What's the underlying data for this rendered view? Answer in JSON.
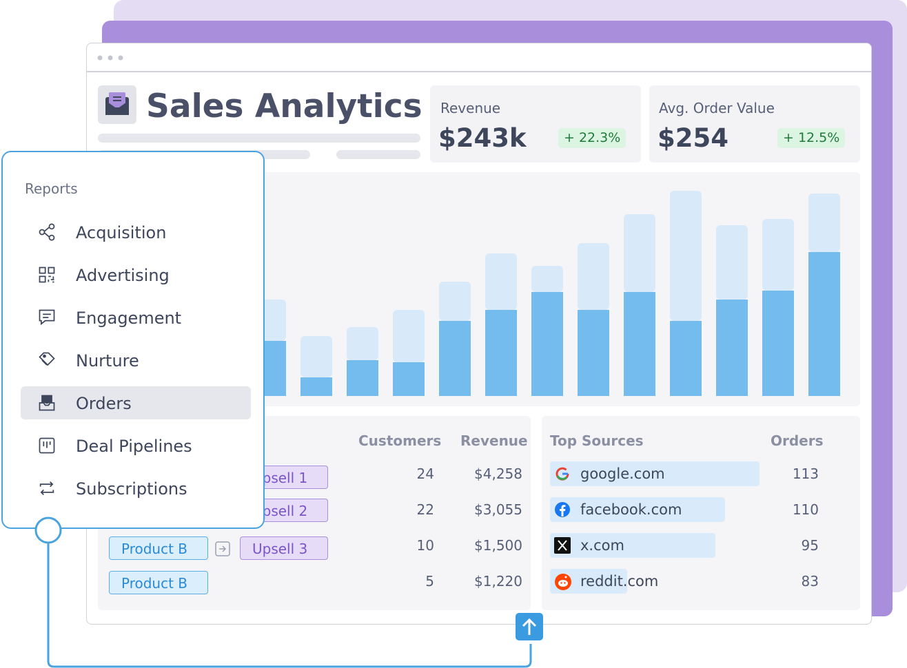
{
  "header": {
    "title": "Sales Analytics"
  },
  "kpis": [
    {
      "label": "Revenue",
      "value": "$243k",
      "change": "+ 22.3%"
    },
    {
      "label": "Avg. Order Value",
      "value": "$254",
      "change": "+ 12.5%"
    }
  ],
  "chart_data": {
    "type": "bar",
    "stacked": true,
    "ylim": [
      0,
      325
    ],
    "series": [
      {
        "color": "#74bcee",
        "values": [
          80,
          27,
          52,
          49,
          109,
          125,
          151,
          125,
          151,
          109,
          140,
          153,
          209
        ]
      },
      {
        "color": "#d8eafa",
        "values": [
          60,
          60,
          48,
          76,
          57,
          82,
          38,
          97,
          113,
          189,
          108,
          104,
          85
        ]
      }
    ]
  },
  "table": {
    "columns": [
      "Customers",
      "Revenue"
    ],
    "rows": [
      {
        "upsell": "Upsell 1",
        "customers": 24,
        "revenue": "$4,258"
      },
      {
        "upsell": "Upsell 2",
        "customers": 22,
        "revenue": "$3,055"
      },
      {
        "product": "Product B",
        "upsell": "Upsell 3",
        "customers": 10,
        "revenue": "$1,500"
      },
      {
        "product": "Product B",
        "customers": 5,
        "revenue": "$1,220"
      }
    ]
  },
  "sources": {
    "columns": [
      "Top Sources",
      "Orders"
    ],
    "rows": [
      {
        "site": "google.com",
        "orders": 113
      },
      {
        "site": "facebook.com",
        "orders": 110
      },
      {
        "site": "x.com",
        "orders": 95
      },
      {
        "site": "reddit.com",
        "orders": 83
      }
    ]
  },
  "menu": {
    "heading": "Reports",
    "items": [
      "Acquisition",
      "Advertising",
      "Engagement",
      "Nurture",
      "Orders",
      "Deal Pipelines",
      "Subscriptions"
    ],
    "active": 4
  }
}
